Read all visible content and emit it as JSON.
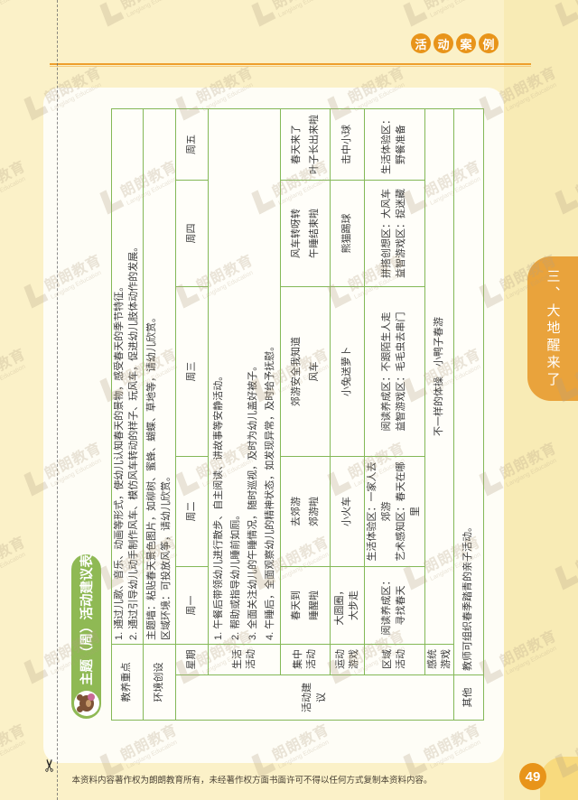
{
  "page": {
    "badge": [
      "活",
      "动",
      "案",
      "例"
    ],
    "side_tab": "三、大地醒来了",
    "page_number": "49",
    "footer": "本资料内容著作权为朗朗教育所有，未经著作权方面书面许可不得以任何方式复制本资料内容。",
    "watermark": {
      "cn": "朗朗教育",
      "en": "Langlang Education"
    },
    "colors": {
      "accent_orange": "#e8941a",
      "tab_orange": "#e9a33c",
      "pill_green": "#8fb954",
      "table_border_green": "#84b857",
      "page_bg": "#fbf1c8"
    }
  },
  "sheet": {
    "title": "主题（周）活动建议表",
    "table": {
      "section_label": "活动建议",
      "week_header": "星期",
      "days": [
        "周一",
        "周二",
        "周三",
        "周四",
        "周五"
      ],
      "rows": {
        "jiaoyang": {
          "label": "教养重点",
          "lines": [
            "1. 通过儿歌、音乐、动画等形式，使幼儿认知春天的景物，感受春天的季节特征。",
            "2. 通过引导幼儿动手制作风车、模仿风车转动的样子、玩风车，促进幼儿肢体动作的发展。"
          ]
        },
        "huanjing": {
          "label": "环境创设",
          "lines": [
            "主题墙：粘贴春天景色图片，如柳树、蜜蜂、蝴蝶、草地等，请幼儿欣赏。",
            "区域环境：可投放风筝，请幼儿欣赏。"
          ]
        },
        "shenghuo": {
          "label": "生活活动",
          "lines": [
            "1. 午餐后带领幼儿进行散步、自主阅读、讲故事等安静活动。",
            "2. 帮助或指导幼儿睡前如厕。",
            "3. 全面关注幼儿的午睡情况，随时巡视，及时为幼儿盖好被子。",
            "4. 午睡后，全面观察幼儿的精神状态，如发现异常，及时给予抚慰。"
          ]
        },
        "jizhong": {
          "label": "集中活动",
          "cells": [
            [
              "春天到",
              "睡醒啦"
            ],
            [
              "去郊游",
              "郊游啦"
            ],
            [
              "郊游安全我知道",
              "风车"
            ],
            [
              "风车转呀转",
              "午睡结束啦"
            ],
            [
              "春天来了",
              "叶子长出来啦"
            ]
          ]
        },
        "yundong": {
          "label": "运动游戏",
          "cells": [
            [
              "大圆圈，",
              "大步走"
            ],
            [
              "小火车"
            ],
            [
              "小兔送萝卜"
            ],
            [
              "熊猫踢球"
            ],
            [
              "击中小球"
            ]
          ]
        },
        "quyu": {
          "label": "区域活动",
          "cells": [
            [
              "阅读养成区：",
              "寻找春天"
            ],
            [
              "生活体验区：一家人去郊游",
              "艺术感知区：春天在哪里"
            ],
            [
              "阅读养成区：不跟陌生人走",
              "益智游戏区：毛毛虫去串门"
            ],
            [
              "拼搭创想区：大风车",
              "益智游戏区：捉迷藏"
            ],
            [
              "生活体验区：野餐准备"
            ]
          ]
        },
        "gantong": {
          "label": "感统游戏",
          "content": "不一样的体操　小鸭子春游"
        },
        "qita": {
          "label": "其他",
          "content": "教师可组织春季踏青的亲子活动。"
        }
      }
    }
  }
}
